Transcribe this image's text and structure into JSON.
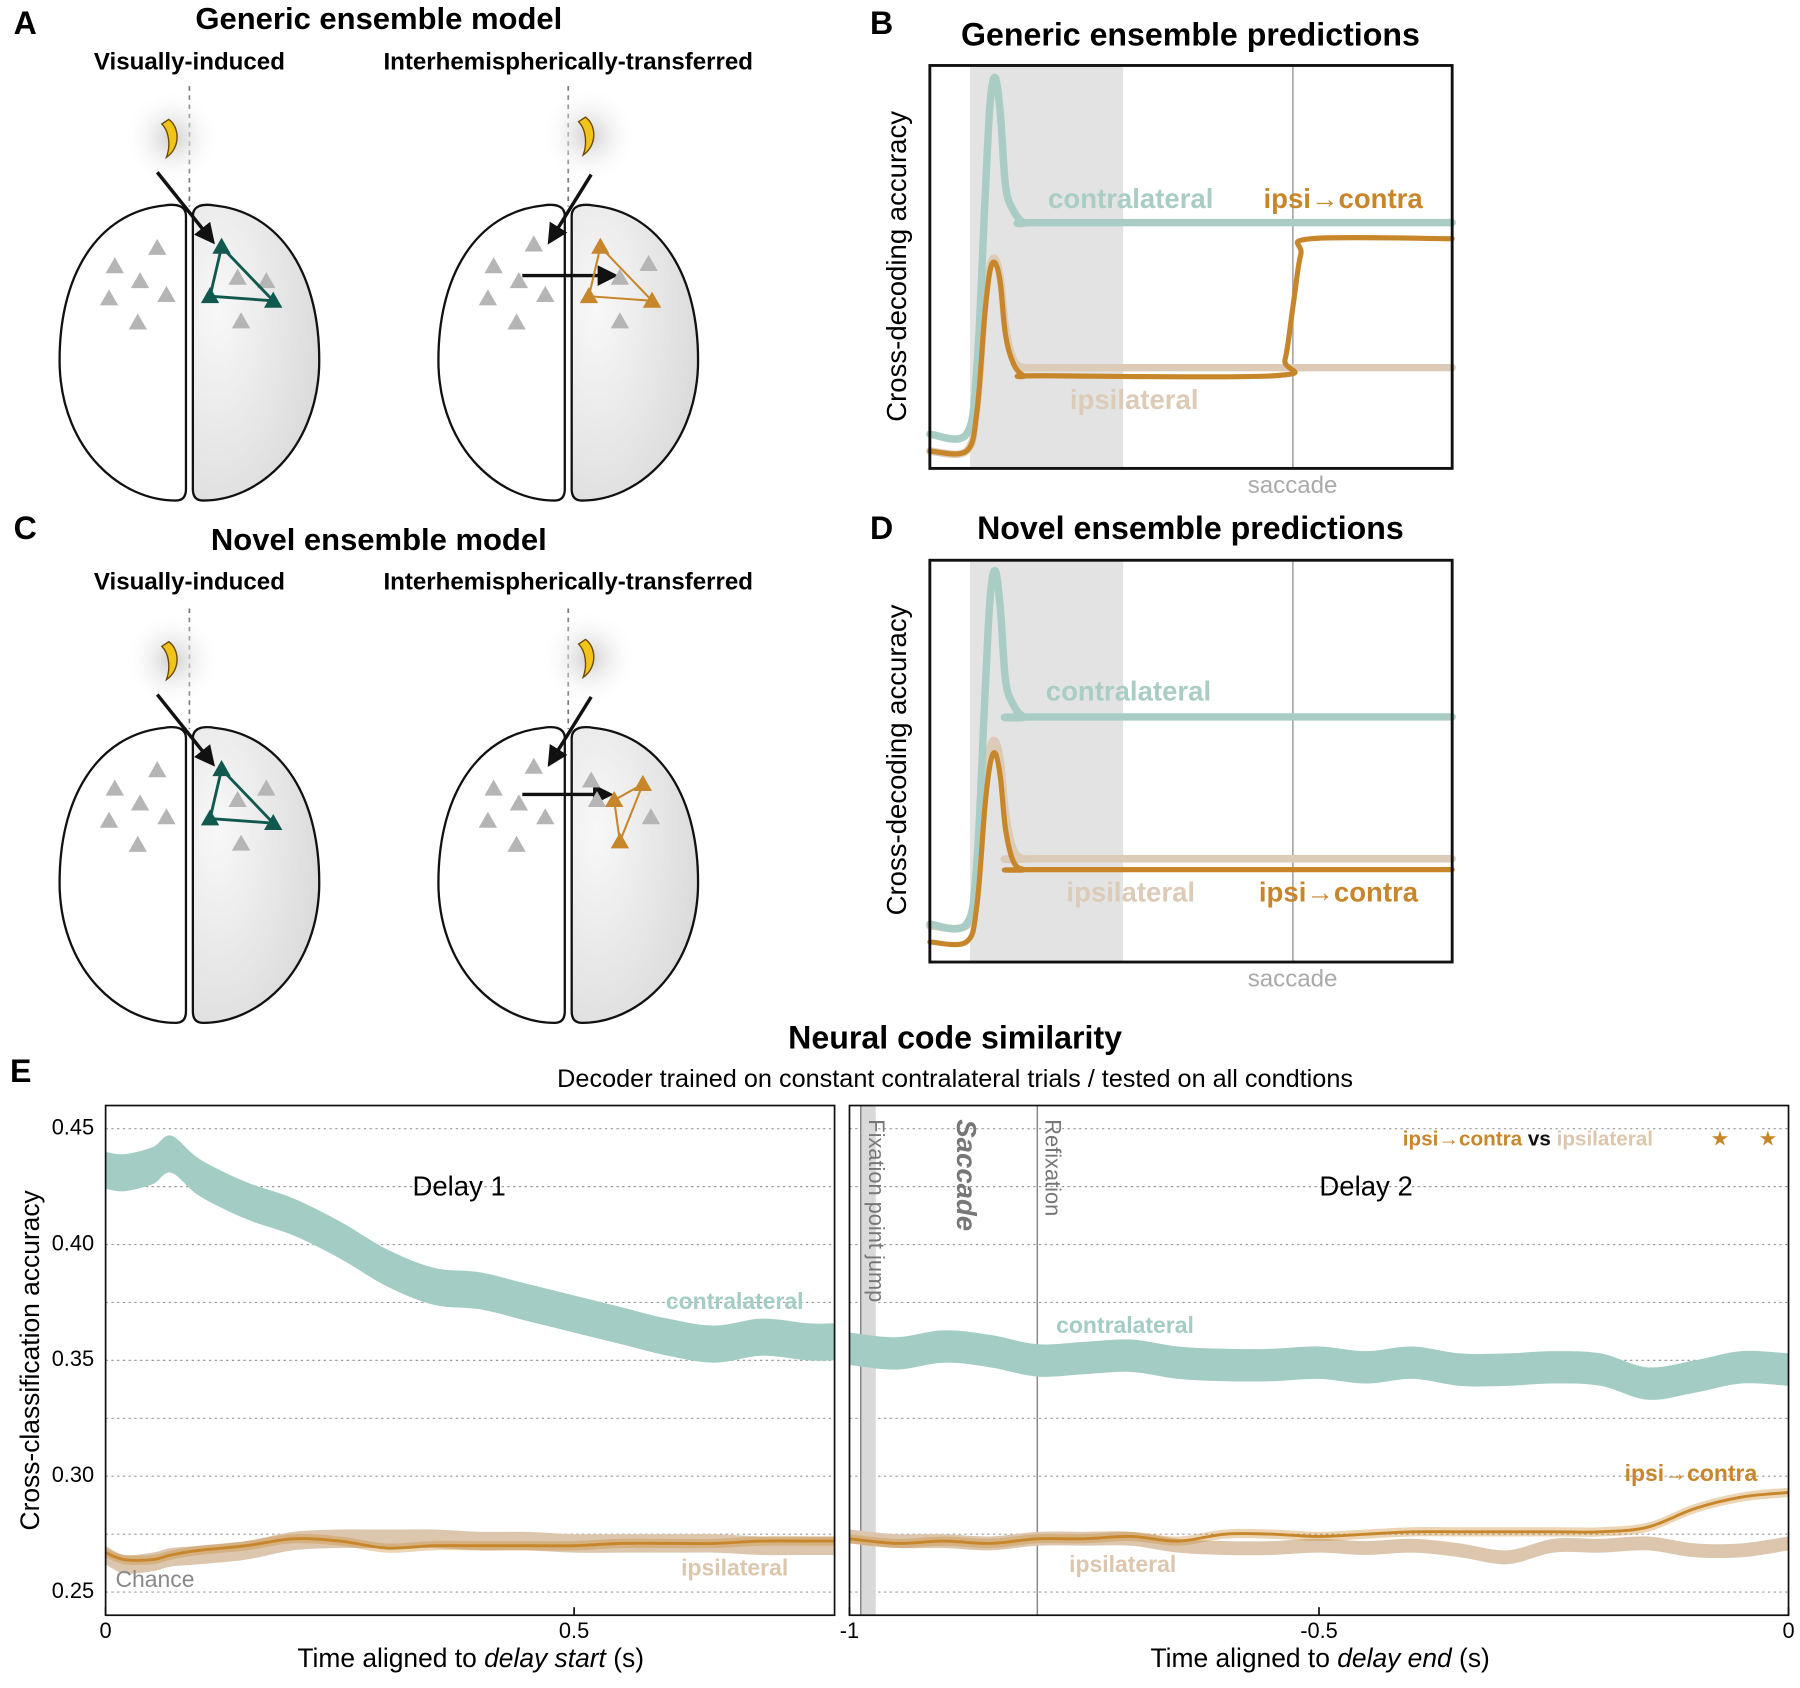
{
  "panel_letters": [
    "A",
    "B",
    "C",
    "D",
    "E"
  ],
  "diagrams": [
    {
      "title": "Generic ensemble model",
      "left_label": "Visually-induced",
      "right_label": "Interhemispherically-transferred"
    },
    {
      "title": "Novel ensemble model",
      "left_label": "Visually-induced",
      "right_label": "Interhemispherically-transferred"
    }
  ],
  "chart_data": [
    {
      "type": "line",
      "title": "Generic ensemble predictions",
      "ylabel": "Cross-decoding accuracy",
      "xlim": [
        0,
        100
      ],
      "ylim": [
        0,
        100
      ],
      "x": [
        0,
        7,
        9,
        10.5,
        11.5,
        12.5,
        13.5,
        14.5,
        16,
        18,
        21,
        66,
        68,
        69.5,
        71,
        73,
        100
      ],
      "shaded_x": [
        7.7,
        37
      ],
      "vline": {
        "x": 69.5,
        "label": "saccade"
      },
      "series": [
        {
          "name": "contralateral",
          "color": "#a9cdc5",
          "values": [
            8.5,
            8.5,
            25,
            65,
            90,
            97,
            88,
            70,
            64,
            61,
            61,
            61,
            61,
            61,
            61,
            61,
            61
          ]
        },
        {
          "name": "ipsilateral",
          "color": "#dccbb6",
          "values": [
            4.3,
            4.3,
            15,
            40,
            50,
            52,
            47,
            35,
            27,
            25,
            25,
            25,
            25,
            25,
            25,
            25,
            25
          ]
        },
        {
          "name": "ipsi→contra",
          "color": "#c8862a",
          "values": [
            4.3,
            4.3,
            14,
            38,
            49,
            51,
            46,
            33,
            26,
            23,
            23,
            23,
            27,
            40,
            53,
            57,
            57
          ]
        }
      ]
    },
    {
      "type": "line",
      "title": "Novel ensemble predictions",
      "ylabel": "Cross-decoding accuracy",
      "xlim": [
        0,
        100
      ],
      "ylim": [
        0,
        100
      ],
      "x": [
        0,
        7,
        9,
        10.5,
        11.5,
        12.5,
        13.5,
        14.5,
        16,
        18,
        21,
        100
      ],
      "shaded_x": [
        7.7,
        37
      ],
      "vline": {
        "x": 69.5,
        "label": "saccade"
      },
      "series": [
        {
          "name": "contralateral",
          "color": "#a9cdc5",
          "values": [
            9.4,
            9.4,
            25,
            65,
            90,
            97.4,
            88,
            70,
            64,
            61,
            61,
            61
          ]
        },
        {
          "name": "ipsilateral",
          "color": "#dccbb6",
          "values": [
            9,
            9,
            18,
            42,
            53,
            55,
            50,
            37,
            28,
            25.7,
            25.7,
            25.7
          ]
        },
        {
          "name": "ipsi→contra",
          "color": "#c8862a",
          "values": [
            5,
            5,
            14,
            38,
            49,
            52,
            46,
            33,
            25,
            23,
            23,
            23
          ]
        }
      ]
    },
    {
      "type": "band",
      "title": "Neural code similarity",
      "subtitle": "Decoder trained on constant contralateral trials / tested on all condtions",
      "ylabel": "Cross-classification accuracy",
      "xlabel_parts": [
        "Time aligned to ",
        "delay start",
        " (s)"
      ],
      "xlim": [
        0,
        0.778
      ],
      "xticks": [
        0,
        0.5
      ],
      "ylim": [
        0.24,
        0.46
      ],
      "yticks": [
        0.25,
        {
          "value": 0.3,
          "label": "0.30"
        },
        0.35,
        {
          "value": 0.4,
          "label": "0.40"
        },
        0.45
      ],
      "minor_yticks": [
        0.275,
        0.325,
        0.375,
        0.425
      ],
      "tick_labels": true,
      "delay_label": "Delay 1",
      "chance_label": "Chance",
      "x": [
        0,
        0.02,
        0.05,
        0.07,
        0.1,
        0.15,
        0.2,
        0.25,
        0.3,
        0.35,
        0.4,
        0.45,
        0.5,
        0.55,
        0.6,
        0.65,
        0.7,
        0.75,
        0.778
      ],
      "series": [
        {
          "name": "contralateral",
          "color": "#a3cdc4",
          "style": "band",
          "values": [
            0.432,
            0.431,
            0.434,
            0.439,
            0.429,
            0.419,
            0.412,
            0.402,
            0.39,
            0.382,
            0.38,
            0.375,
            0.37,
            0.365,
            0.36,
            0.357,
            0.36,
            0.358,
            0.358
          ],
          "errors": [
            0.008,
            0.008,
            0.008,
            0.008,
            0.008,
            0.008,
            0.008,
            0.008,
            0.008,
            0.008,
            0.008,
            0.008,
            0.008,
            0.008,
            0.008,
            0.008,
            0.008,
            0.008,
            0.008
          ]
        },
        {
          "name": "ipsilateral",
          "color": "#dcc7ae",
          "style": "band",
          "values": [
            0.266,
            0.262,
            0.263,
            0.265,
            0.266,
            0.268,
            0.272,
            0.273,
            0.273,
            0.273,
            0.272,
            0.272,
            0.271,
            0.271,
            0.271,
            0.271,
            0.27,
            0.27,
            0.27
          ],
          "errors": [
            0.004,
            0.004,
            0.004,
            0.004,
            0.004,
            0.004,
            0.004,
            0.004,
            0.004,
            0.004,
            0.004,
            0.004,
            0.004,
            0.004,
            0.004,
            0.004,
            0.004,
            0.004,
            0.004
          ]
        },
        {
          "color": "#c8862a",
          "style": "line_band",
          "values": [
            0.267,
            0.264,
            0.264,
            0.266,
            0.268,
            0.27,
            0.273,
            0.272,
            0.269,
            0.27,
            0.27,
            0.27,
            0.27,
            0.271,
            0.271,
            0.271,
            0.272,
            0.272,
            0.272
          ],
          "errors": [
            0.002,
            0.002,
            0.002,
            0.002,
            0.002,
            0.002,
            0.002,
            0.002,
            0.002,
            0.002,
            0.002,
            0.002,
            0.002,
            0.002,
            0.002,
            0.002,
            0.002,
            0.002,
            0.002
          ]
        }
      ]
    },
    {
      "type": "band",
      "xlabel_parts": [
        "Time aligned to ",
        "delay end",
        " (s)"
      ],
      "xlim": [
        -1,
        0
      ],
      "xticks": [
        -1,
        -0.5,
        0
      ],
      "ylim": [
        0.24,
        0.46
      ],
      "yticks": [
        0.25,
        0.3,
        0.35,
        0.4,
        0.45
      ],
      "minor_yticks": [
        0.275,
        0.325,
        0.375,
        0.425
      ],
      "tick_labels": false,
      "delay_label": "Delay 2",
      "shaded_x": [
        -0.988,
        -0.972
      ],
      "saccade_label": "Saccade",
      "events": [
        {
          "x": -0.988,
          "label": "Fixation point jump"
        },
        {
          "x": -0.8,
          "label": "Refixation"
        }
      ],
      "significance": {
        "label_parts": [
          "ipsi→contra",
          " vs ",
          "ipsilateral"
        ],
        "marker": "★",
        "x": [
          -0.073,
          -0.022
        ],
        "y": 0.445
      },
      "x": [
        -1,
        -0.95,
        -0.9,
        -0.85,
        -0.8,
        -0.75,
        -0.7,
        -0.65,
        -0.6,
        -0.55,
        -0.5,
        -0.45,
        -0.4,
        -0.35,
        -0.3,
        -0.25,
        -0.2,
        -0.15,
        -0.1,
        -0.05,
        0
      ],
      "series": [
        {
          "name": "contralateral",
          "color": "#a3cdc4",
          "style": "band",
          "values": [
            0.355,
            0.353,
            0.356,
            0.354,
            0.35,
            0.351,
            0.352,
            0.349,
            0.348,
            0.348,
            0.349,
            0.347,
            0.349,
            0.346,
            0.346,
            0.347,
            0.346,
            0.34,
            0.343,
            0.347,
            0.346
          ],
          "errors": [
            0.007,
            0.007,
            0.007,
            0.007,
            0.007,
            0.007,
            0.007,
            0.007,
            0.007,
            0.007,
            0.007,
            0.007,
            0.007,
            0.007,
            0.007,
            0.007,
            0.007,
            0.007,
            0.007,
            0.007,
            0.007
          ]
        },
        {
          "name": "ipsilateral",
          "color": "#dcc7ae",
          "style": "band",
          "values": [
            0.274,
            0.272,
            0.272,
            0.271,
            0.273,
            0.273,
            0.273,
            0.27,
            0.269,
            0.269,
            0.27,
            0.269,
            0.27,
            0.268,
            0.265,
            0.27,
            0.27,
            0.271,
            0.268,
            0.268,
            0.271
          ],
          "errors": [
            0.003,
            0.003,
            0.003,
            0.003,
            0.003,
            0.003,
            0.003,
            0.003,
            0.003,
            0.003,
            0.003,
            0.003,
            0.003,
            0.003,
            0.003,
            0.003,
            0.003,
            0.003,
            0.003,
            0.003,
            0.003
          ]
        },
        {
          "name": "ipsi→contra",
          "color": "#c8862a",
          "style": "line_band",
          "values": [
            0.273,
            0.271,
            0.272,
            0.271,
            0.273,
            0.273,
            0.274,
            0.272,
            0.275,
            0.275,
            0.274,
            0.275,
            0.276,
            0.276,
            0.276,
            0.276,
            0.276,
            0.278,
            0.286,
            0.291,
            0.293
          ],
          "errors": [
            0.002,
            0.002,
            0.002,
            0.002,
            0.002,
            0.002,
            0.002,
            0.002,
            0.002,
            0.002,
            0.002,
            0.002,
            0.002,
            0.002,
            0.002,
            0.002,
            0.002,
            0.002,
            0.002,
            0.002,
            0.002
          ]
        }
      ]
    }
  ]
}
